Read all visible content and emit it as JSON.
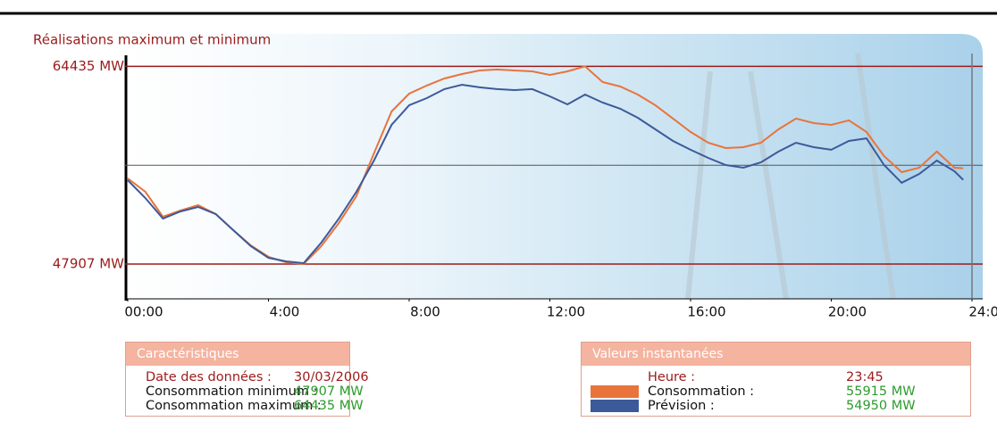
{
  "chart_data": {
    "type": "line",
    "title": "Réalisations maximum et minimum",
    "x": [
      0,
      0.5,
      1,
      1.5,
      2,
      2.5,
      3,
      3.5,
      4,
      4.5,
      5,
      5.5,
      6,
      6.5,
      7,
      7.5,
      8,
      8.5,
      9,
      9.5,
      10,
      10.5,
      11,
      11.5,
      12,
      12.5,
      13,
      13.5,
      14,
      14.5,
      15,
      15.5,
      16,
      16.5,
      17,
      17.5,
      18,
      18.5,
      19,
      19.5,
      20,
      20.5,
      21,
      21.5,
      22,
      22.5,
      23,
      23.5,
      23.75
    ],
    "series": [
      {
        "name": "Consommation :",
        "color": "#e8743c",
        "values": [
          55070,
          53950,
          51860,
          52380,
          52830,
          52090,
          50740,
          49470,
          48510,
          48060,
          47907,
          49400,
          51340,
          53580,
          57160,
          60660,
          62150,
          62830,
          63420,
          63790,
          64090,
          64170,
          64090,
          64020,
          63720,
          64020,
          64435,
          63120,
          62750,
          62080,
          61180,
          60070,
          58950,
          58050,
          57600,
          57680,
          58050,
          59170,
          60070,
          59690,
          59540,
          59920,
          58950,
          56930,
          55590,
          55960,
          57310,
          55960,
          55915
        ]
      },
      {
        "name": "Prévision :",
        "color": "#3c5a9a",
        "values": [
          54920,
          53430,
          51710,
          52310,
          52680,
          52090,
          50740,
          49400,
          48430,
          48130,
          47980,
          49700,
          51710,
          53950,
          56560,
          59540,
          61180,
          61780,
          62530,
          62900,
          62680,
          62530,
          62450,
          62530,
          61930,
          61260,
          62080,
          61410,
          60890,
          60140,
          59170,
          58200,
          57460,
          56780,
          56190,
          55960,
          56410,
          57310,
          58050,
          57680,
          57460,
          58200,
          58420,
          56190,
          54700,
          55440,
          56560,
          55670,
          54950
        ]
      }
    ],
    "xlim": [
      0,
      24
    ],
    "xticks": [
      {
        "value": 0,
        "label": "00:00"
      },
      {
        "value": 4,
        "label": "4:00"
      },
      {
        "value": 8,
        "label": "8:00"
      },
      {
        "value": 12,
        "label": "12:00"
      },
      {
        "value": 16,
        "label": "16:00"
      },
      {
        "value": 20,
        "label": "20:00"
      },
      {
        "value": 24,
        "label": "24:00"
      }
    ],
    "ylim": [
      45000,
      67000
    ],
    "yticks": [
      {
        "value": 47907,
        "label": "47907 MW"
      },
      {
        "value": 64435,
        "label": "64435 MW"
      }
    ]
  },
  "panels": {
    "characteristics": {
      "title": "Caractéristiques",
      "rows": [
        [
          "Date des données :",
          "30/03/2006"
        ],
        [
          "Consommation minimum :",
          "47907 MW"
        ],
        [
          "Consommation maximum :",
          "64435 MW"
        ]
      ]
    },
    "instant": {
      "title": "Valeurs instantanées",
      "rows": [
        [
          "Heure :",
          "23:45"
        ],
        [
          "55915 MW"
        ],
        [
          "54950 MW"
        ]
      ]
    }
  }
}
